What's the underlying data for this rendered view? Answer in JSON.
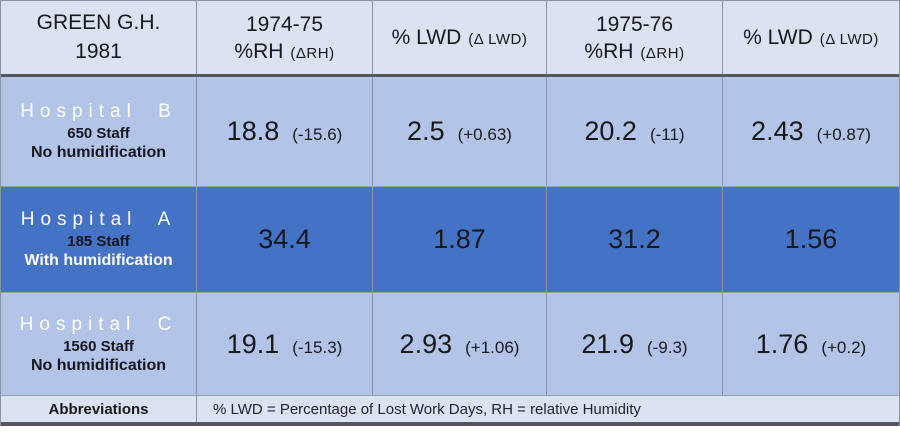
{
  "title": "GREEN G.H. 1981",
  "colors": {
    "header_bg": "#dbe2f1",
    "light_row_bg": "#b2c4e8",
    "dark_row_bg": "#4472c4",
    "footer_bg": "#dbe2f1",
    "grid_line": "#8b92a0",
    "heavy_line": "#55575c",
    "text_dark": "#17181c",
    "text_light": "#ffffff"
  },
  "header": {
    "col1_line1": "GREEN G.H.",
    "col1_line2": "1981",
    "col2_line1": "1974-75",
    "col2_main": "%RH",
    "col2_paren": "(ΔRH)",
    "col3_main": "% LWD",
    "col3_paren": "(Δ LWD)",
    "col4_line1": "1975-76",
    "col4_main": "%RH",
    "col4_paren": "(ΔRH)",
    "col5_main": "% LWD",
    "col5_paren": "(Δ LWD)"
  },
  "rows": [
    {
      "name": "Hospital B",
      "staff": "650 Staff",
      "humidification": "No humidification",
      "c1_value": "18.8",
      "c1_delta": "(-15.6)",
      "c2_value": "2.5",
      "c2_delta": "(+0.63)",
      "c3_value": "20.2",
      "c3_delta": "(-11)",
      "c4_value": "2.43",
      "c4_delta": "(+0.87)"
    },
    {
      "name": "Hospital A",
      "staff": "185 Staff",
      "humidification": "With humidification",
      "c1_value": "34.4",
      "c1_delta": "",
      "c2_value": "1.87",
      "c2_delta": "",
      "c3_value": "31.2",
      "c3_delta": "",
      "c4_value": "1.56",
      "c4_delta": ""
    },
    {
      "name": "Hospital C",
      "staff": "1560 Staff",
      "humidification": "No humidification",
      "c1_value": "19.1",
      "c1_delta": "(-15.3)",
      "c2_value": "2.93",
      "c2_delta": "(+1.06)",
      "c3_value": "21.9",
      "c3_delta": "(-9.3)",
      "c4_value": "1.76",
      "c4_delta": "(+0.2)"
    }
  ],
  "footer": {
    "label": "Abbreviations",
    "text": "% LWD = Percentage of Lost Work Days, RH = relative Humidity"
  },
  "chart_data": {
    "type": "table",
    "title": "GREEN G.H. 1981",
    "columns": [
      "Hospital",
      "1974-75 %RH (ΔRH)",
      "% LWD (Δ LWD)",
      "1975-76 %RH (ΔRH)",
      "% LWD (Δ LWD)"
    ],
    "rows": [
      {
        "hospital": "Hospital B",
        "staff": 650,
        "humidification": "No humidification",
        "rh_1974_75": 18.8,
        "delta_rh_1974_75": -15.6,
        "lwd_1974_75": 2.5,
        "delta_lwd_1974_75": 0.63,
        "rh_1975_76": 20.2,
        "delta_rh_1975_76": -11,
        "lwd_1975_76": 2.43,
        "delta_lwd_1975_76": 0.87
      },
      {
        "hospital": "Hospital A",
        "staff": 185,
        "humidification": "With humidification",
        "rh_1974_75": 34.4,
        "delta_rh_1974_75": null,
        "lwd_1974_75": 1.87,
        "delta_lwd_1974_75": null,
        "rh_1975_76": 31.2,
        "delta_rh_1975_76": null,
        "lwd_1975_76": 1.56,
        "delta_lwd_1975_76": null
      },
      {
        "hospital": "Hospital C",
        "staff": 1560,
        "humidification": "No humidification",
        "rh_1974_75": 19.1,
        "delta_rh_1974_75": -15.3,
        "lwd_1974_75": 2.93,
        "delta_lwd_1974_75": 1.06,
        "rh_1975_76": 21.9,
        "delta_rh_1975_76": -9.3,
        "lwd_1975_76": 1.76,
        "delta_lwd_1975_76": 0.2
      }
    ],
    "footnote": "% LWD = Percentage of Lost Work Days, RH = relative Humidity"
  }
}
